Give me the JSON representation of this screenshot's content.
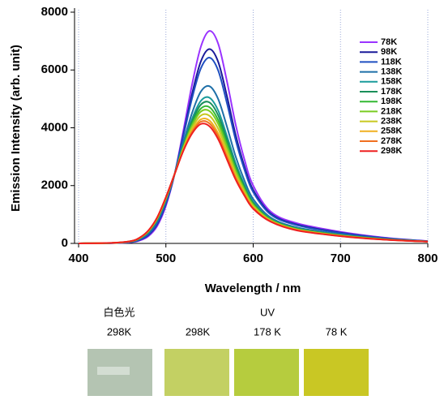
{
  "chart_data": {
    "type": "line",
    "x_label": "Wavelength / nm",
    "y_label": "Emission Intensity (arb. unit)",
    "x": [
      400,
      440,
      460,
      470,
      480,
      490,
      500,
      510,
      520,
      530,
      540,
      550,
      560,
      570,
      580,
      590,
      600,
      620,
      650,
      700,
      750,
      800
    ],
    "xlim": [
      400,
      800
    ],
    "ylim": [
      0,
      8000
    ],
    "xticks": [
      400,
      500,
      600,
      700,
      800
    ],
    "yticks": [
      0,
      2000,
      4000,
      6000,
      8000
    ],
    "grid": true,
    "legend": "upper right",
    "series": [
      {
        "name": "78K",
        "color": "#9a33ff",
        "values": [
          0,
          10,
          40,
          100,
          250,
          600,
          1300,
          2400,
          3900,
          5500,
          6800,
          7350,
          6900,
          5600,
          4100,
          2900,
          2000,
          1100,
          700,
          400,
          200,
          80
        ]
      },
      {
        "name": "98K",
        "color": "#1a1a99",
        "values": [
          0,
          12,
          48,
          119,
          288,
          657,
          1357,
          2400,
          3767,
          5177,
          6293,
          6723,
          6273,
          5087,
          3739,
          2663,
          1848,
          1034,
          653,
          372,
          187,
          76
        ]
      },
      {
        "name": "118K",
        "color": "#1f4fc0",
        "values": [
          0,
          13,
          51,
          128,
          306,
          684,
          1384,
          2400,
          3704,
          5024,
          6052,
          6426,
          5976,
          4844,
          3568,
          2550,
          1776,
          1002,
          630,
          358,
          180,
          74
        ]
      },
      {
        "name": "138K",
        "color": "#1e6fa8",
        "values": [
          0,
          16,
          63,
          158,
          366,
          774,
          1474,
          2400,
          3494,
          4514,
          5251,
          5436,
          4986,
          4034,
          2998,
          2175,
          1536,
          897,
          555,
          313,
          159,
          68
        ]
      },
      {
        "name": "158K",
        "color": "#1a9b9b",
        "values": [
          0,
          17,
          68,
          170,
          390,
          810,
          1510,
          2400,
          3410,
          4310,
          4931,
          5040,
          4590,
          3710,
          2770,
          2025,
          1440,
          855,
          525,
          295,
          151,
          66
        ]
      },
      {
        "name": "178K",
        "color": "#1a8f5a",
        "values": [
          0,
          18,
          70,
          175,
          400,
          825,
          1525,
          2400,
          3375,
          4225,
          4798,
          4875,
          4425,
          3575,
          2675,
          1963,
          1400,
          838,
          513,
          288,
          148,
          65
        ]
      },
      {
        "name": "198K",
        "color": "#33b833",
        "values": [
          0,
          18,
          72,
          180,
          410,
          840,
          1540,
          2400,
          3340,
          4140,
          4664,
          4710,
          4260,
          3440,
          2580,
          1900,
          1360,
          820,
          500,
          280,
          144,
          64
        ]
      },
      {
        "name": "218K",
        "color": "#7acc22",
        "values": [
          0,
          18,
          74,
          184,
          418,
          852,
          1552,
          2400,
          3312,
          4072,
          4557,
          4578,
          4128,
          3332,
          2504,
          1850,
          1328,
          806,
          490,
          274,
          141,
          63
        ]
      },
      {
        "name": "238K",
        "color": "#c8c820",
        "values": [
          0,
          19,
          76,
          189,
          428,
          867,
          1567,
          2400,
          3277,
          3987,
          4424,
          4413,
          3963,
          3197,
          2409,
          1788,
          1288,
          789,
          478,
          267,
          138,
          62
        ]
      },
      {
        "name": "258K",
        "color": "#f0b020",
        "values": [
          0,
          19,
          78,
          194,
          438,
          882,
          1582,
          2400,
          3242,
          3902,
          4290,
          4248,
          3798,
          3062,
          2314,
          1725,
          1248,
          771,
          465,
          259,
          134,
          61
        ]
      },
      {
        "name": "278K",
        "color": "#f07020",
        "values": [
          0,
          20,
          79,
          197,
          444,
          891,
          1591,
          2400,
          3221,
          3851,
          4210,
          4149,
          3699,
          2981,
          2257,
          1688,
          1224,
          761,
          458,
          255,
          132,
          61
        ]
      },
      {
        "name": "298K",
        "color": "#ee2020",
        "values": [
          0,
          20,
          80,
          200,
          450,
          900,
          1600,
          2400,
          3200,
          3800,
          4130,
          4050,
          3600,
          2900,
          2200,
          1650,
          1200,
          750,
          450,
          250,
          130,
          60
        ]
      }
    ]
  },
  "photo_panel": {
    "white_light": "白色光",
    "uv": "UV",
    "labels": [
      "298K",
      "298K",
      "178 K",
      "78 K"
    ]
  }
}
